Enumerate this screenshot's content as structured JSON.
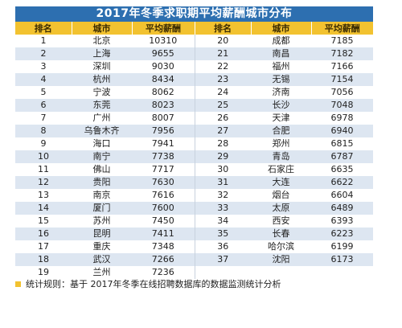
{
  "title": "2017年冬季求职期平均薪酬城市分布",
  "headers": {
    "rank": "排名",
    "city": "城市",
    "salary": "平均薪酬"
  },
  "left_table": [
    {
      "rank": "1",
      "city": "北京",
      "salary": "10310"
    },
    {
      "rank": "2",
      "city": "上海",
      "salary": "9655"
    },
    {
      "rank": "3",
      "city": "深圳",
      "salary": "9030"
    },
    {
      "rank": "4",
      "city": "杭州",
      "salary": "8434"
    },
    {
      "rank": "5",
      "city": "宁波",
      "salary": "8062"
    },
    {
      "rank": "6",
      "city": "东莞",
      "salary": "8023"
    },
    {
      "rank": "7",
      "city": "广州",
      "salary": "8007"
    },
    {
      "rank": "8",
      "city": "乌鲁木齐",
      "salary": "7956"
    },
    {
      "rank": "9",
      "city": "海口",
      "salary": "7941"
    },
    {
      "rank": "10",
      "city": "南宁",
      "salary": "7738"
    },
    {
      "rank": "11",
      "city": "佛山",
      "salary": "7717"
    },
    {
      "rank": "12",
      "city": "贵阳",
      "salary": "7630"
    },
    {
      "rank": "13",
      "city": "南京",
      "salary": "7616"
    },
    {
      "rank": "14",
      "city": "厦门",
      "salary": "7600"
    },
    {
      "rank": "15",
      "city": "苏州",
      "salary": "7450"
    },
    {
      "rank": "16",
      "city": "昆明",
      "salary": "7411"
    },
    {
      "rank": "17",
      "city": "重庆",
      "salary": "7348"
    },
    {
      "rank": "18",
      "city": "武汉",
      "salary": "7266"
    },
    {
      "rank": "19",
      "city": "兰州",
      "salary": "7236"
    }
  ],
  "right_table": [
    {
      "rank": "20",
      "city": "成都",
      "salary": "7185"
    },
    {
      "rank": "21",
      "city": "南昌",
      "salary": "7182"
    },
    {
      "rank": "22",
      "city": "福州",
      "salary": "7166"
    },
    {
      "rank": "23",
      "city": "无锡",
      "salary": "7154"
    },
    {
      "rank": "24",
      "city": "济南",
      "salary": "7056"
    },
    {
      "rank": "25",
      "city": "长沙",
      "salary": "7048"
    },
    {
      "rank": "26",
      "city": "天津",
      "salary": "6978"
    },
    {
      "rank": "27",
      "city": "合肥",
      "salary": "6940"
    },
    {
      "rank": "28",
      "city": "郑州",
      "salary": "6815"
    },
    {
      "rank": "29",
      "city": "青岛",
      "salary": "6787"
    },
    {
      "rank": "30",
      "city": "石家庄",
      "salary": "6635"
    },
    {
      "rank": "31",
      "city": "大连",
      "salary": "6622"
    },
    {
      "rank": "32",
      "city": "烟台",
      "salary": "6604"
    },
    {
      "rank": "33",
      "city": "太原",
      "salary": "6489"
    },
    {
      "rank": "34",
      "city": "西安",
      "salary": "6393"
    },
    {
      "rank": "35",
      "city": "长春",
      "salary": "6223"
    },
    {
      "rank": "36",
      "city": "哈尔滨",
      "salary": "6199"
    },
    {
      "rank": "37",
      "city": "沈阳",
      "salary": "6173"
    },
    {
      "rank": "",
      "city": "",
      "salary": ""
    }
  ],
  "note": "统计规则：基于 2017年冬季在线招聘数据库的数据监测统计分析",
  "colors": {
    "title_bg": "#2d6fb0",
    "header_bg": "#f2c230",
    "row_alt": "#dde6f1"
  }
}
